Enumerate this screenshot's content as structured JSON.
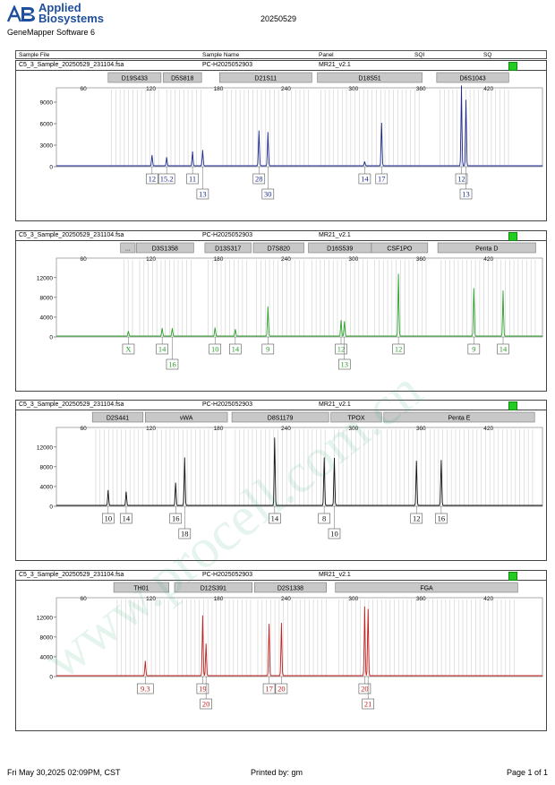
{
  "header": {
    "brand_line1": "Applied",
    "brand_line2": "Biosystems",
    "logo_letters": "AB",
    "software": "GeneMapper Software 6",
    "run_date": "20250529"
  },
  "columns": [
    "Sample File",
    "Sample Name",
    "Panel",
    "SQI",
    "SQ"
  ],
  "watermark": "www.procell.com.cn",
  "footer": {
    "date": "Fri May 30,2025 02:09PM, CST",
    "printed_by": "Printed by: gm",
    "page": "Page 1 of 1"
  },
  "panels": [
    {
      "sample_file": "C5_3_Sample_20250529_231104.fsa",
      "sample_name": "PC-H2025052903",
      "panel": "MR21_v2.1",
      "color": "#1c2a8f",
      "quality_color": "#22cc22",
      "x_ticks": [
        "60",
        "120",
        "180",
        "240",
        "300",
        "360",
        "420"
      ],
      "y_ticks": [
        "0",
        "3000",
        "6000",
        "9000"
      ],
      "y_max": 10000,
      "markers": [
        {
          "name": "D19S433",
          "start": 82,
          "end": 129
        },
        {
          "name": "D5S818",
          "start": 131,
          "end": 165
        },
        {
          "name": "D21S11",
          "start": 181,
          "end": 263
        },
        {
          "name": "D18S51",
          "start": 268,
          "end": 361
        },
        {
          "name": "D6S1043",
          "start": 374,
          "end": 438
        }
      ],
      "peaks": [
        {
          "x": 121,
          "h": 1500
        },
        {
          "x": 134,
          "h": 1200
        },
        {
          "x": 157,
          "h": 2000
        },
        {
          "x": 166,
          "h": 2200
        },
        {
          "x": 216,
          "h": 4900
        },
        {
          "x": 224,
          "h": 4700
        },
        {
          "x": 310,
          "h": 600
        },
        {
          "x": 325,
          "h": 6000
        },
        {
          "x": 396,
          "h": 11200
        },
        {
          "x": 400,
          "h": 9200
        }
      ],
      "calls": [
        {
          "label": "12",
          "x": 121,
          "row": 0
        },
        {
          "label": "15.2",
          "x": 134,
          "row": 0
        },
        {
          "label": "11",
          "x": 157,
          "row": 0
        },
        {
          "label": "13",
          "x": 166,
          "row": 1
        },
        {
          "label": "28",
          "x": 216,
          "row": 0
        },
        {
          "label": "30",
          "x": 224,
          "row": 1
        },
        {
          "label": "14",
          "x": 310,
          "row": 0
        },
        {
          "label": "17",
          "x": 325,
          "row": 0
        },
        {
          "label": "12",
          "x": 396,
          "row": 0
        },
        {
          "label": "13",
          "x": 400,
          "row": 1
        }
      ]
    },
    {
      "sample_file": "C5_3_Sample_20250529_231104.fsa",
      "sample_name": "PC-H2025052903",
      "panel": "MR21_v2.1",
      "color": "#2aa02a",
      "quality_color": "#22cc22",
      "x_ticks": [
        "60",
        "120",
        "180",
        "240",
        "300",
        "360",
        "420"
      ],
      "y_ticks": [
        "0",
        "4000",
        "8000",
        "12000"
      ],
      "y_max": 14500,
      "markers": [
        {
          "name": "...",
          "start": 93,
          "end": 106
        },
        {
          "name": "D3S1358",
          "start": 107,
          "end": 158
        },
        {
          "name": "D13S317",
          "start": 168,
          "end": 209
        },
        {
          "name": "D7S820",
          "start": 211,
          "end": 256
        },
        {
          "name": "D16S539",
          "start": 260,
          "end": 316
        },
        {
          "name": "CSF1PO",
          "start": 316,
          "end": 366
        },
        {
          "name": "Penta D",
          "start": 375,
          "end": 462
        }
      ],
      "peaks": [
        {
          "x": 100,
          "h": 1000
        },
        {
          "x": 130,
          "h": 1600
        },
        {
          "x": 139,
          "h": 1600
        },
        {
          "x": 177,
          "h": 1700
        },
        {
          "x": 195,
          "h": 1400
        },
        {
          "x": 224,
          "h": 6000
        },
        {
          "x": 289,
          "h": 3200
        },
        {
          "x": 292,
          "h": 3000
        },
        {
          "x": 340,
          "h": 12600
        },
        {
          "x": 407,
          "h": 9700
        },
        {
          "x": 433,
          "h": 9200
        }
      ],
      "calls": [
        {
          "label": "X",
          "x": 100,
          "row": 0
        },
        {
          "label": "14",
          "x": 130,
          "row": 0
        },
        {
          "label": "16",
          "x": 139,
          "row": 1
        },
        {
          "label": "10",
          "x": 177,
          "row": 0
        },
        {
          "label": "14",
          "x": 195,
          "row": 0
        },
        {
          "label": "9",
          "x": 224,
          "row": 0
        },
        {
          "label": "12",
          "x": 289,
          "row": 0
        },
        {
          "label": "13",
          "x": 292,
          "row": 1
        },
        {
          "label": "12",
          "x": 340,
          "row": 0
        },
        {
          "label": "9",
          "x": 407,
          "row": 0
        },
        {
          "label": "14",
          "x": 433,
          "row": 0
        }
      ]
    },
    {
      "sample_file": "C5_3_Sample_20250529_231104.fsa",
      "sample_name": "PC-H2025052903",
      "panel": "MR21_v2.1",
      "color": "#111111",
      "quality_color": "#22cc22",
      "x_ticks": [
        "60",
        "120",
        "180",
        "240",
        "300",
        "360",
        "420"
      ],
      "y_ticks": [
        "0",
        "4000",
        "8000",
        "12000"
      ],
      "y_max": 14500,
      "markers": [
        {
          "name": "D2S441",
          "start": 68,
          "end": 113
        },
        {
          "name": "vWA",
          "start": 115,
          "end": 188
        },
        {
          "name": "D8S1179",
          "start": 192,
          "end": 278
        },
        {
          "name": "TPOX",
          "start": 280,
          "end": 325
        },
        {
          "name": "Penta E",
          "start": 327,
          "end": 461
        }
      ],
      "peaks": [
        {
          "x": 82,
          "h": 3100
        },
        {
          "x": 98,
          "h": 2800
        },
        {
          "x": 142,
          "h": 4600
        },
        {
          "x": 150,
          "h": 9700
        },
        {
          "x": 230,
          "h": 13700
        },
        {
          "x": 274,
          "h": 9700
        },
        {
          "x": 283,
          "h": 9600
        },
        {
          "x": 356,
          "h": 9000
        },
        {
          "x": 378,
          "h": 9200
        }
      ],
      "calls": [
        {
          "label": "10",
          "x": 82,
          "row": 0
        },
        {
          "label": "14",
          "x": 98,
          "row": 0
        },
        {
          "label": "16",
          "x": 142,
          "row": 0
        },
        {
          "label": "18",
          "x": 150,
          "row": 1
        },
        {
          "label": "14",
          "x": 230,
          "row": 0
        },
        {
          "label": "8",
          "x": 274,
          "row": 0
        },
        {
          "label": "10",
          "x": 283,
          "row": 1
        },
        {
          "label": "12",
          "x": 356,
          "row": 0
        },
        {
          "label": "16",
          "x": 378,
          "row": 0
        }
      ]
    },
    {
      "sample_file": "C5_3_Sample_20250529_231104.fsa",
      "sample_name": "PC-H2025052903",
      "panel": "MR21_v2.1",
      "color": "#c0211e",
      "quality_color": "#22cc22",
      "x_ticks": [
        "60",
        "120",
        "180",
        "240",
        "300",
        "360",
        "420"
      ],
      "y_ticks": [
        "0",
        "4000",
        "8000",
        "12000"
      ],
      "y_max": 14500,
      "markers": [
        {
          "name": "TH01",
          "start": 87,
          "end": 136
        },
        {
          "name": "D12S391",
          "start": 141,
          "end": 210
        },
        {
          "name": "D2S1338",
          "start": 212,
          "end": 276
        },
        {
          "name": "FGA",
          "start": 284,
          "end": 446
        }
      ],
      "peaks": [
        {
          "x": 115,
          "h": 3000
        },
        {
          "x": 166,
          "h": 12200
        },
        {
          "x": 169,
          "h": 6500
        },
        {
          "x": 225,
          "h": 10500
        },
        {
          "x": 236,
          "h": 10700
        },
        {
          "x": 310,
          "h": 14000
        },
        {
          "x": 313,
          "h": 13500
        }
      ],
      "calls": [
        {
          "label": "9.3",
          "x": 115,
          "row": 0
        },
        {
          "label": "19",
          "x": 166,
          "row": 0
        },
        {
          "label": "20",
          "x": 169,
          "row": 1
        },
        {
          "label": "17",
          "x": 225,
          "row": 0
        },
        {
          "label": "20",
          "x": 236,
          "row": 0
        },
        {
          "label": "20",
          "x": 310,
          "row": 0
        },
        {
          "label": "21",
          "x": 313,
          "row": 1
        }
      ]
    }
  ]
}
